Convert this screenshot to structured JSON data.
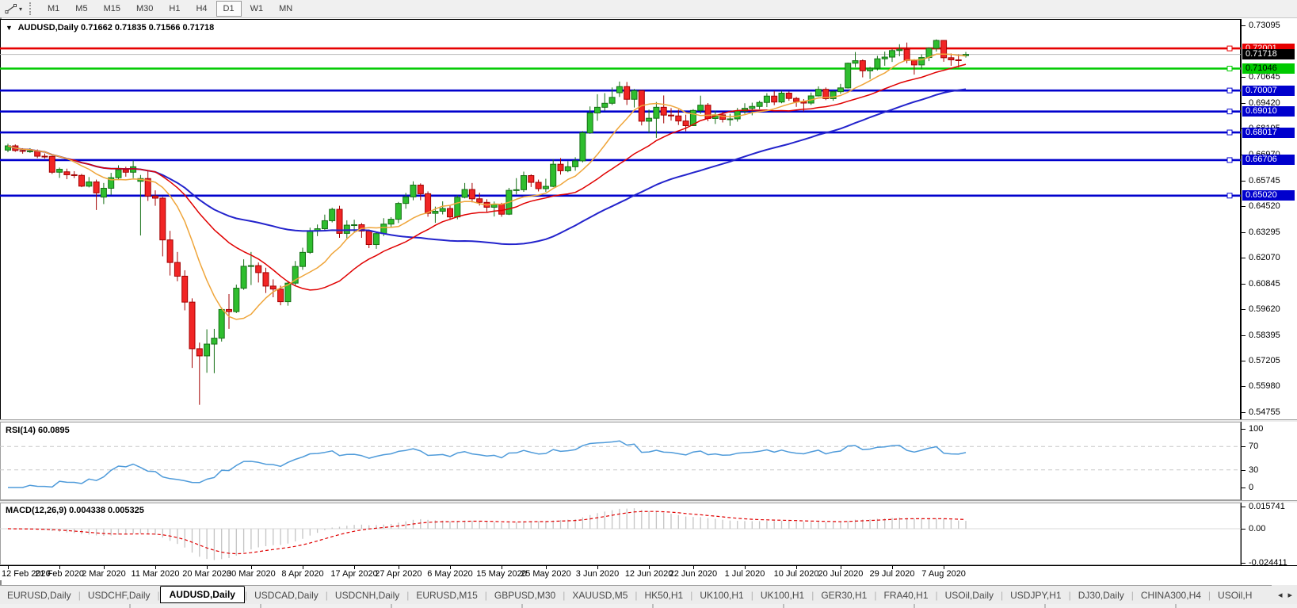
{
  "toolbar": {
    "dropdown_glyph": "▾",
    "timeframes": [
      "M1",
      "M5",
      "M15",
      "M30",
      "H1",
      "H4",
      "D1",
      "W1",
      "MN"
    ],
    "active_timeframe": "D1"
  },
  "chart_header": {
    "dropdown_glyph": "▼",
    "symbol": "AUDUSD,Daily",
    "ohlc": "0.71662 0.71835 0.71566 0.71718"
  },
  "main_chart": {
    "price_axis_ticks": [
      "0.73095",
      "0.70645",
      "0.69420",
      "0.68195",
      "0.66970",
      "0.65745",
      "0.64520",
      "0.63295",
      "0.62070",
      "0.60845",
      "0.59620",
      "0.58395",
      "0.57205",
      "0.55980",
      "0.54755"
    ],
    "levels": [
      {
        "price": 0.72001,
        "label": "0.72001",
        "color": "#e60000",
        "text_color": "#ffffff"
      },
      {
        "price": 0.71046,
        "label": "0.71046",
        "color": "#00ca00",
        "text_color": "#000000"
      },
      {
        "price": 0.70007,
        "label": "0.70007",
        "color": "#0000cd",
        "text_color": "#ffffff"
      },
      {
        "price": 0.6901,
        "label": "0.69010",
        "color": "#0000cd",
        "text_color": "#ffffff"
      },
      {
        "price": 0.68017,
        "label": "0.68017",
        "color": "#0000cd",
        "text_color": "#ffffff"
      },
      {
        "price": 0.66706,
        "label": "0.66706",
        "color": "#0000cd",
        "text_color": "#ffffff"
      },
      {
        "price": 0.6502,
        "label": "0.65020",
        "color": "#0000cd",
        "text_color": "#ffffff"
      }
    ],
    "current_price": {
      "price": 0.71718,
      "label": "0.71718",
      "badge_color": "#000000",
      "text_color": "#ffffff",
      "line_color": "#b8b8b8"
    },
    "colors": {
      "up_fill": "#2fbe2f",
      "up_stroke": "#156f15",
      "down_fill": "#f12525",
      "down_stroke": "#a30000",
      "ma_fast": "#efa53a",
      "ma_mid": "#e00000",
      "ma_slow": "#2323cc"
    }
  },
  "rsi_panel": {
    "label": "RSI(14) 60.0895",
    "axis_ticks": [
      "100",
      "70",
      "30",
      "0"
    ],
    "axis_values": [
      100,
      70,
      30,
      0
    ],
    "overbought": 70,
    "oversold": 30,
    "line_color": "#4f9bda",
    "level_color": "#c8c8c8"
  },
  "macd_panel": {
    "label": "MACD(12,26,9) 0.004338 0.005325",
    "axis_ticks": [
      "0.015741",
      "0.00",
      "-0.024411"
    ],
    "axis_values": [
      0.015741,
      0.0,
      -0.024411
    ],
    "histogram_color": "#c4c4c4",
    "signal_color": "#e00000"
  },
  "date_axis": {
    "labels": [
      "12 Feb 2020",
      "21 Feb 2020",
      "2 Mar 2020",
      "11 Mar 2020",
      "20 Mar 2020",
      "30 Mar 2020",
      "8 Apr 2020",
      "17 Apr 2020",
      "27 Apr 2020",
      "6 May 2020",
      "15 May 2020",
      "25 May 2020",
      "3 Jun 2020",
      "12 Jun 2020",
      "22 Jun 2020",
      "1 Jul 2020",
      "10 Jul 2020",
      "20 Jul 2020",
      "29 Jul 2020",
      "7 Aug 2020"
    ],
    "indices": [
      0,
      7,
      13,
      20,
      27,
      33,
      40,
      47,
      53,
      60,
      67,
      73,
      80,
      87,
      93,
      100,
      107,
      113,
      120,
      127
    ]
  },
  "tab_bar": {
    "tabs": [
      "EURUSD,Daily",
      "USDCHF,Daily",
      "AUDUSD,Daily",
      "USDCAD,Daily",
      "USDCNH,Daily",
      "EURUSD,M15",
      "GBPUSD,M30",
      "XAUUSD,M5",
      "HK50,H1",
      "UK100,H1",
      "UK100,H1",
      "GER30,H1",
      "FRA40,H1",
      "USOil,Daily",
      "USDJPY,H1",
      "DJ30,Daily",
      "CHINA300,H4",
      "USOil,H"
    ],
    "active_tab": "AUDUSD,Daily",
    "scroll_left_glyph": "◂",
    "scroll_right_glyph": "▸"
  },
  "chart_data": {
    "type": "candlestick",
    "symbol": "AUDUSD",
    "timeframe": "Daily",
    "y_range": [
      0.54755,
      0.73095
    ],
    "rsi_period": 14,
    "macd_params": [
      12,
      26,
      9
    ],
    "ohlc": [
      [
        0.6718,
        0.6748,
        0.6708,
        0.6738
      ],
      [
        0.6738,
        0.6745,
        0.671,
        0.6716
      ],
      [
        0.6716,
        0.6727,
        0.6701,
        0.6713
      ],
      [
        0.6713,
        0.6727,
        0.6705,
        0.6714
      ],
      [
        0.6714,
        0.6721,
        0.668,
        0.6689
      ],
      [
        0.6689,
        0.6702,
        0.6678,
        0.6688
      ],
      [
        0.6688,
        0.6691,
        0.6605,
        0.6613
      ],
      [
        0.6613,
        0.6635,
        0.6586,
        0.6627
      ],
      [
        0.6615,
        0.663,
        0.658,
        0.6601
      ],
      [
        0.6601,
        0.6618,
        0.6585,
        0.6598
      ],
      [
        0.6598,
        0.6605,
        0.6542,
        0.6547
      ],
      [
        0.6547,
        0.659,
        0.6541,
        0.6567
      ],
      [
        0.6567,
        0.6578,
        0.6434,
        0.6515
      ],
      [
        0.6495,
        0.6562,
        0.6462,
        0.6537
      ],
      [
        0.6537,
        0.661,
        0.6506,
        0.6587
      ],
      [
        0.6587,
        0.6646,
        0.6576,
        0.6625
      ],
      [
        0.6625,
        0.6639,
        0.6592,
        0.6613
      ],
      [
        0.6613,
        0.6668,
        0.6585,
        0.6639
      ],
      [
        0.657,
        0.66,
        0.6313,
        0.6583
      ],
      [
        0.6583,
        0.6618,
        0.6477,
        0.65
      ],
      [
        0.65,
        0.6527,
        0.6454,
        0.649
      ],
      [
        0.649,
        0.6496,
        0.6214,
        0.6292
      ],
      [
        0.6292,
        0.6335,
        0.6123,
        0.6185
      ],
      [
        0.6185,
        0.6235,
        0.6096,
        0.612
      ],
      [
        0.612,
        0.6148,
        0.5958,
        0.5997
      ],
      [
        0.5997,
        0.6015,
        0.5685,
        0.5776
      ],
      [
        0.5776,
        0.5805,
        0.551,
        0.5742
      ],
      [
        0.5742,
        0.5868,
        0.5662,
        0.5798
      ],
      [
        0.5798,
        0.587,
        0.566,
        0.5826
      ],
      [
        0.5826,
        0.5972,
        0.581,
        0.5962
      ],
      [
        0.5962,
        0.6035,
        0.587,
        0.5952
      ],
      [
        0.5952,
        0.608,
        0.5945,
        0.6063
      ],
      [
        0.6063,
        0.62,
        0.6055,
        0.6167
      ],
      [
        0.6167,
        0.6235,
        0.6078,
        0.617
      ],
      [
        0.617,
        0.6185,
        0.609,
        0.6137
      ],
      [
        0.6137,
        0.616,
        0.604,
        0.6073
      ],
      [
        0.6073,
        0.6105,
        0.602,
        0.6059
      ],
      [
        0.6059,
        0.6075,
        0.5982,
        0.5999
      ],
      [
        0.5999,
        0.6098,
        0.598,
        0.6087
      ],
      [
        0.6087,
        0.6192,
        0.6075,
        0.6166
      ],
      [
        0.6166,
        0.6255,
        0.615,
        0.6233
      ],
      [
        0.6233,
        0.635,
        0.6226,
        0.6336
      ],
      [
        0.6336,
        0.6365,
        0.631,
        0.6345
      ],
      [
        0.6345,
        0.6412,
        0.6336,
        0.6383
      ],
      [
        0.6383,
        0.6445,
        0.6375,
        0.6437
      ],
      [
        0.6437,
        0.6454,
        0.6302,
        0.6323
      ],
      [
        0.6323,
        0.6385,
        0.63,
        0.6362
      ],
      [
        0.6362,
        0.6388,
        0.633,
        0.6364
      ],
      [
        0.6364,
        0.6372,
        0.6302,
        0.6334
      ],
      [
        0.6334,
        0.6341,
        0.6253,
        0.627
      ],
      [
        0.627,
        0.633,
        0.625,
        0.6322
      ],
      [
        0.6322,
        0.6395,
        0.631,
        0.6367
      ],
      [
        0.6367,
        0.64,
        0.6352,
        0.639
      ],
      [
        0.639,
        0.6472,
        0.6372,
        0.6465
      ],
      [
        0.6465,
        0.6515,
        0.644,
        0.6496
      ],
      [
        0.6496,
        0.657,
        0.648,
        0.6552
      ],
      [
        0.6552,
        0.656,
        0.648,
        0.6511
      ],
      [
        0.6511,
        0.6522,
        0.6402,
        0.6418
      ],
      [
        0.6418,
        0.645,
        0.6373,
        0.6428
      ],
      [
        0.6428,
        0.6475,
        0.6413,
        0.6441
      ],
      [
        0.6441,
        0.6457,
        0.6387,
        0.6401
      ],
      [
        0.6401,
        0.6504,
        0.639,
        0.6494
      ],
      [
        0.6494,
        0.6562,
        0.6489,
        0.6531
      ],
      [
        0.6531,
        0.6562,
        0.647,
        0.6487
      ],
      [
        0.6487,
        0.6516,
        0.6455,
        0.647
      ],
      [
        0.647,
        0.6485,
        0.6424,
        0.6447
      ],
      [
        0.6447,
        0.6474,
        0.6403,
        0.6461
      ],
      [
        0.6461,
        0.6468,
        0.6402,
        0.6414
      ],
      [
        0.6414,
        0.6539,
        0.641,
        0.6527
      ],
      [
        0.6527,
        0.6585,
        0.6508,
        0.653
      ],
      [
        0.653,
        0.6616,
        0.652,
        0.6597
      ],
      [
        0.6597,
        0.6603,
        0.6543,
        0.6565
      ],
      [
        0.6565,
        0.6578,
        0.6522,
        0.6535
      ],
      [
        0.6535,
        0.6582,
        0.652,
        0.6546
      ],
      [
        0.6546,
        0.6675,
        0.6542,
        0.6651
      ],
      [
        0.6651,
        0.668,
        0.6602,
        0.662
      ],
      [
        0.662,
        0.6665,
        0.6613,
        0.6639
      ],
      [
        0.6639,
        0.6684,
        0.662,
        0.6667
      ],
      [
        0.6667,
        0.6808,
        0.666,
        0.68
      ],
      [
        0.68,
        0.6925,
        0.6795,
        0.6894
      ],
      [
        0.6894,
        0.6983,
        0.6857,
        0.6921
      ],
      [
        0.6921,
        0.6988,
        0.6905,
        0.694
      ],
      [
        0.694,
        0.7015,
        0.6932,
        0.6968
      ],
      [
        0.699,
        0.7043,
        0.697,
        0.7019
      ],
      [
        0.7019,
        0.7041,
        0.6932,
        0.6959
      ],
      [
        0.6959,
        0.7008,
        0.692,
        0.7
      ],
      [
        0.7,
        0.7003,
        0.6835,
        0.6855
      ],
      [
        0.6855,
        0.691,
        0.68,
        0.6869
      ],
      [
        0.6869,
        0.6946,
        0.6776,
        0.6921
      ],
      [
        0.6921,
        0.6977,
        0.6845,
        0.6884
      ],
      [
        0.6884,
        0.6917,
        0.6858,
        0.688
      ],
      [
        0.688,
        0.691,
        0.6837,
        0.6856
      ],
      [
        0.6856,
        0.6886,
        0.6807,
        0.6834
      ],
      [
        0.6834,
        0.6912,
        0.6832,
        0.6906
      ],
      [
        0.6906,
        0.6976,
        0.689,
        0.6931
      ],
      [
        0.6931,
        0.6941,
        0.6855,
        0.6868
      ],
      [
        0.6868,
        0.6905,
        0.6842,
        0.6885
      ],
      [
        0.6885,
        0.69,
        0.6849,
        0.6864
      ],
      [
        0.6864,
        0.689,
        0.6833,
        0.6866
      ],
      [
        0.6866,
        0.6918,
        0.6853,
        0.6903
      ],
      [
        0.6903,
        0.694,
        0.689,
        0.6916
      ],
      [
        0.6916,
        0.6943,
        0.6883,
        0.6925
      ],
      [
        0.6925,
        0.6952,
        0.6912,
        0.6944
      ],
      [
        0.6944,
        0.6988,
        0.6922,
        0.6974
      ],
      [
        0.6974,
        0.6998,
        0.6931,
        0.6946
      ],
      [
        0.6946,
        0.6999,
        0.694,
        0.6988
      ],
      [
        0.6988,
        0.6996,
        0.6952,
        0.6963
      ],
      [
        0.6963,
        0.697,
        0.6923,
        0.6948
      ],
      [
        0.6948,
        0.696,
        0.6901,
        0.6941
      ],
      [
        0.6941,
        0.6991,
        0.6932,
        0.6975
      ],
      [
        0.6975,
        0.702,
        0.6972,
        0.7006
      ],
      [
        0.7006,
        0.7015,
        0.6955,
        0.6962
      ],
      [
        0.6962,
        0.7,
        0.6952,
        0.6995
      ],
      [
        0.6995,
        0.7032,
        0.6985,
        0.7013
      ],
      [
        0.7013,
        0.7133,
        0.701,
        0.713
      ],
      [
        0.713,
        0.7183,
        0.7111,
        0.7142
      ],
      [
        0.7142,
        0.7148,
        0.7063,
        0.7094
      ],
      [
        0.7094,
        0.7112,
        0.7055,
        0.7106
      ],
      [
        0.7106,
        0.7165,
        0.7096,
        0.7151
      ],
      [
        0.7151,
        0.7185,
        0.7118,
        0.7159
      ],
      [
        0.7159,
        0.7198,
        0.7136,
        0.719
      ],
      [
        0.719,
        0.722,
        0.7163,
        0.7196
      ],
      [
        0.7196,
        0.7228,
        0.713,
        0.7143
      ],
      [
        0.7143,
        0.7149,
        0.7076,
        0.7122
      ],
      [
        0.7122,
        0.7172,
        0.7102,
        0.7157
      ],
      [
        0.7157,
        0.7205,
        0.714,
        0.7201
      ],
      [
        0.7201,
        0.7243,
        0.7185,
        0.7238
      ],
      [
        0.7238,
        0.724,
        0.7137,
        0.7156
      ],
      [
        0.7156,
        0.7176,
        0.7118,
        0.7146
      ],
      [
        0.7146,
        0.7172,
        0.711,
        0.7143
      ],
      [
        0.71662,
        0.71835,
        0.71566,
        0.71718
      ]
    ]
  }
}
